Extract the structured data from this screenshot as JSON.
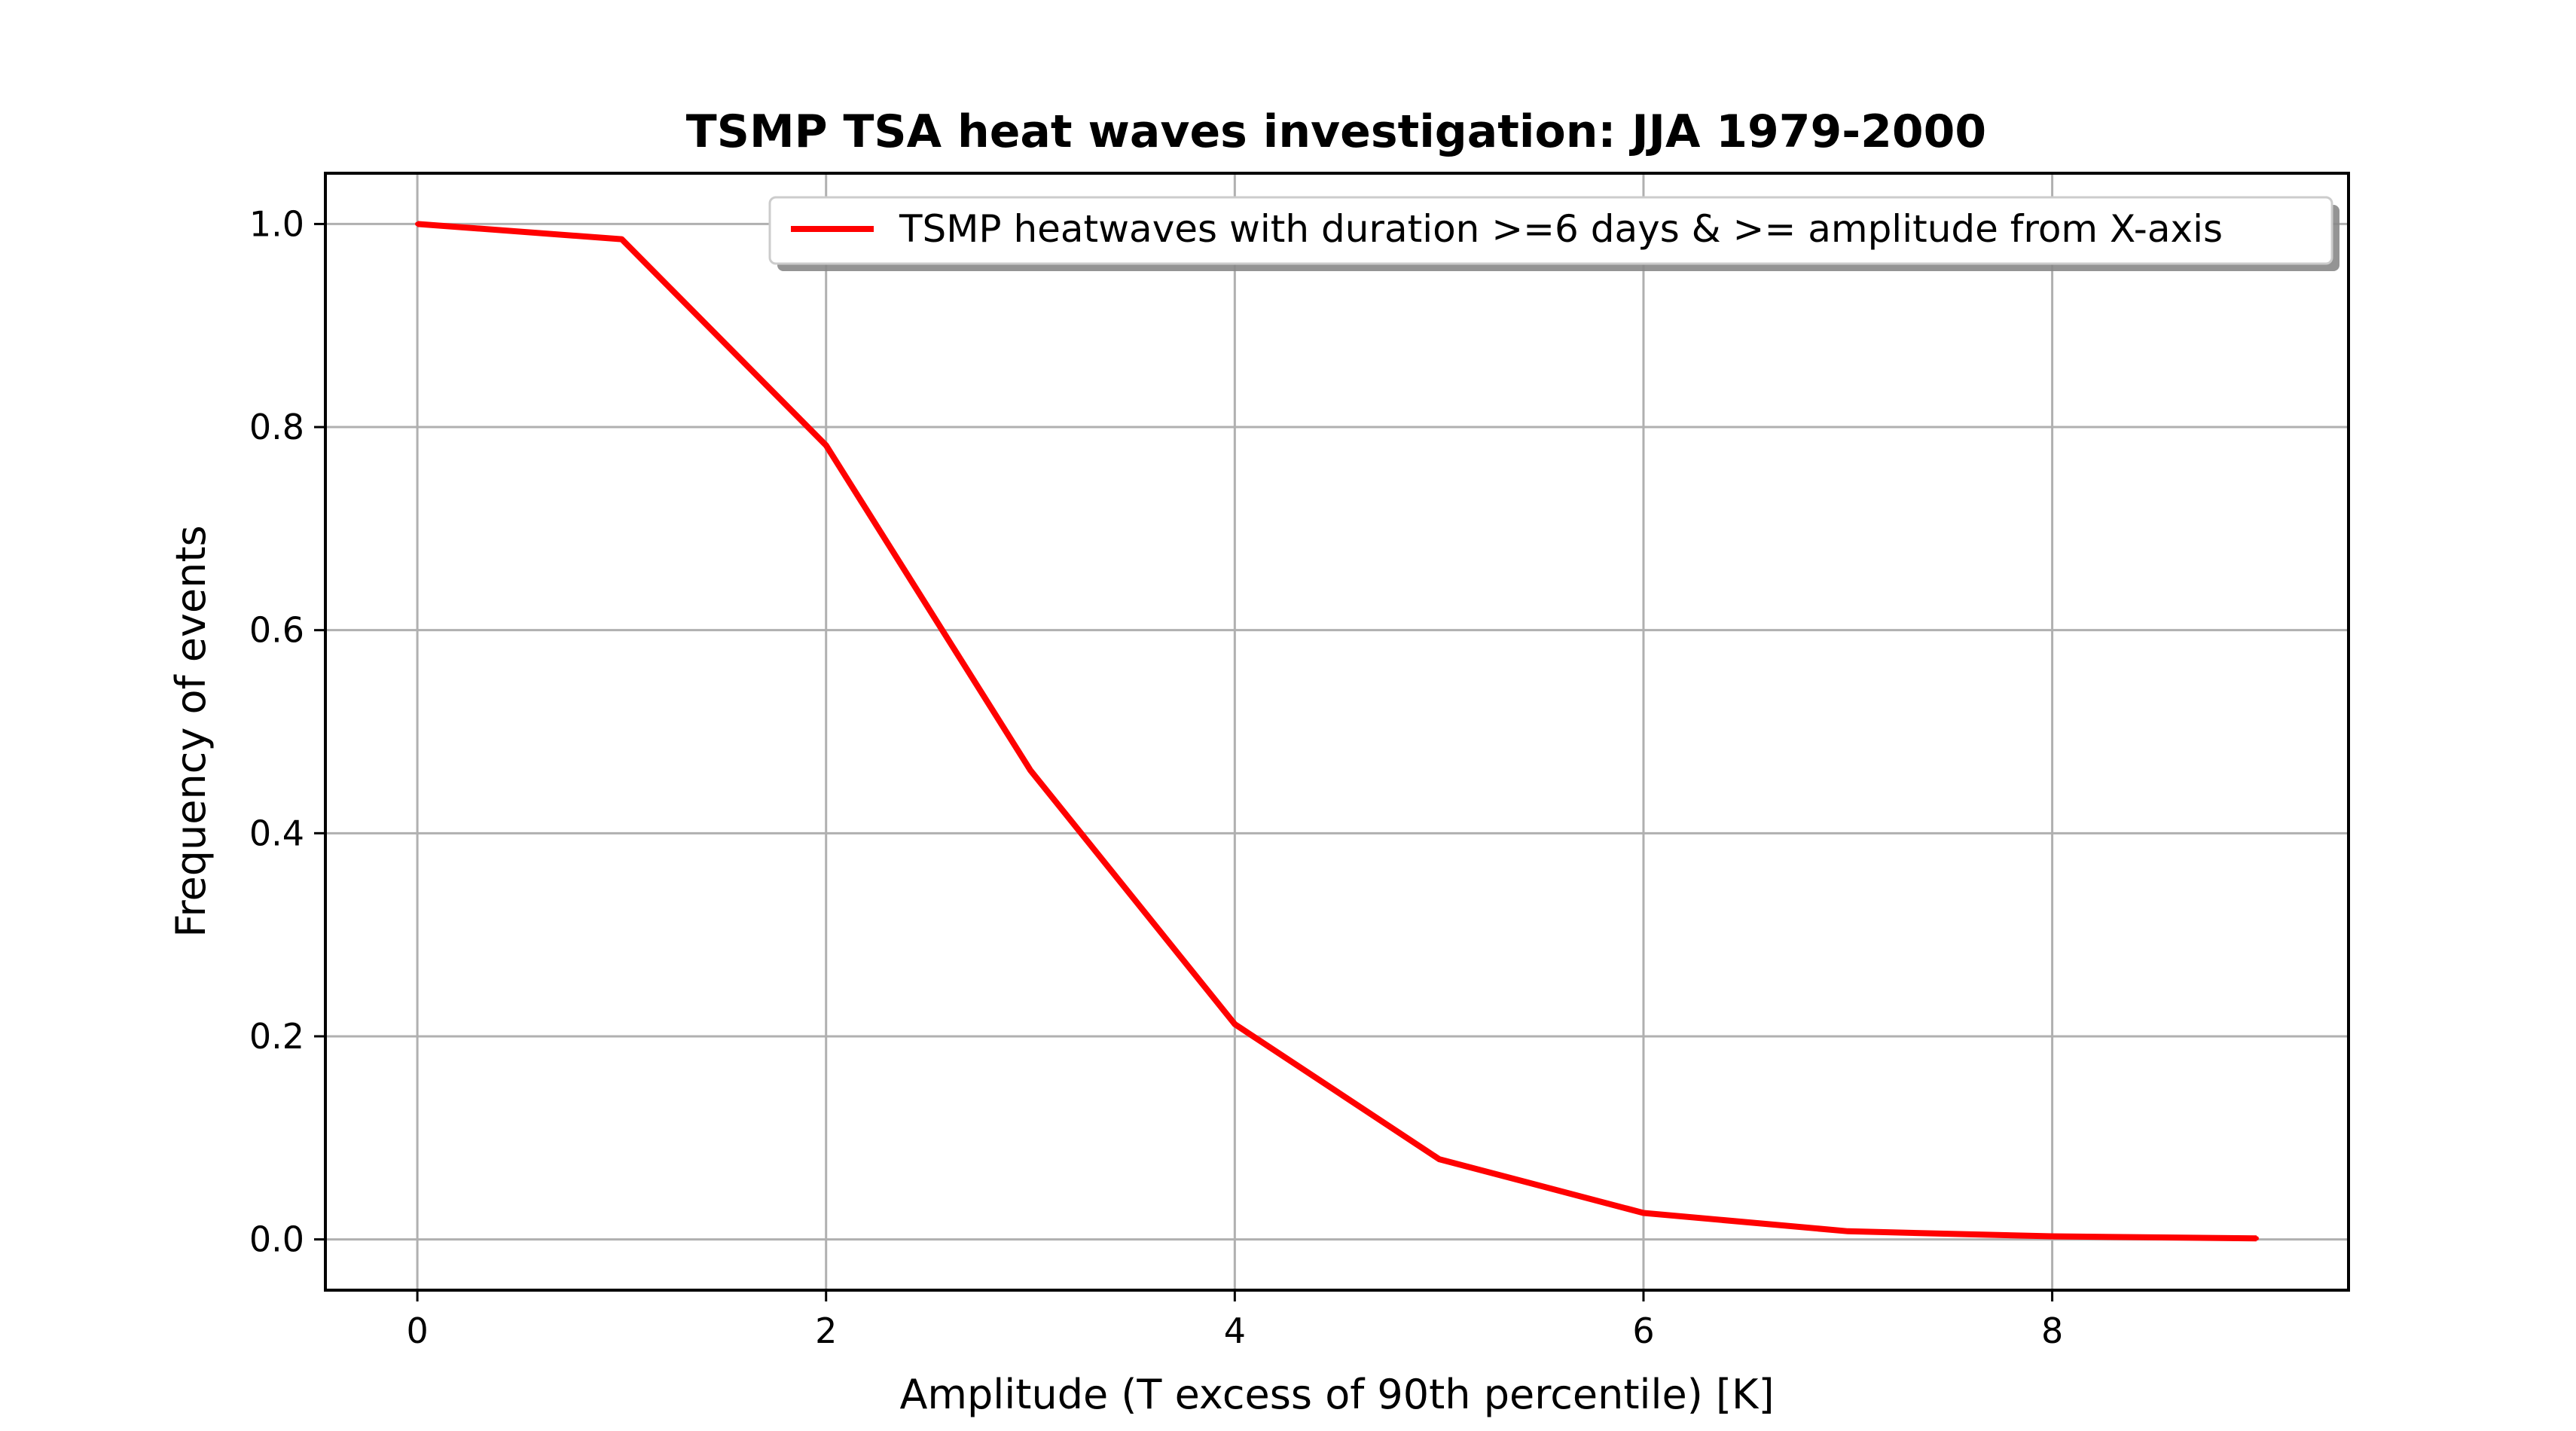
{
  "chart_data": {
    "type": "line",
    "title": "TSMP TSA heat waves investigation: JJA 1979-2000",
    "xlabel": "Amplitude (T excess of 90th percentile) [K]",
    "ylabel": "Frequency of events",
    "xlim": [
      -0.45,
      9.45
    ],
    "ylim": [
      -0.05,
      1.05
    ],
    "xticks": [
      0,
      2,
      4,
      6,
      8
    ],
    "xtick_labels": [
      "0",
      "2",
      "4",
      "6",
      "8"
    ],
    "yticks": [
      0.0,
      0.2,
      0.4,
      0.6,
      0.8,
      1.0
    ],
    "ytick_labels": [
      "0.0",
      "0.2",
      "0.4",
      "0.6",
      "0.8",
      "1.0"
    ],
    "grid": true,
    "legend_position": "top-right",
    "series": [
      {
        "name": "TSMP heatwaves with duration >=6 days & >= amplitude from X-axis",
        "color": "#ff0000",
        "x": [
          0,
          1,
          2,
          3,
          4,
          5,
          6,
          7,
          8,
          9
        ],
        "y": [
          1.0,
          0.985,
          0.782,
          0.462,
          0.212,
          0.079,
          0.026,
          0.008,
          0.003,
          0.001
        ]
      }
    ]
  }
}
